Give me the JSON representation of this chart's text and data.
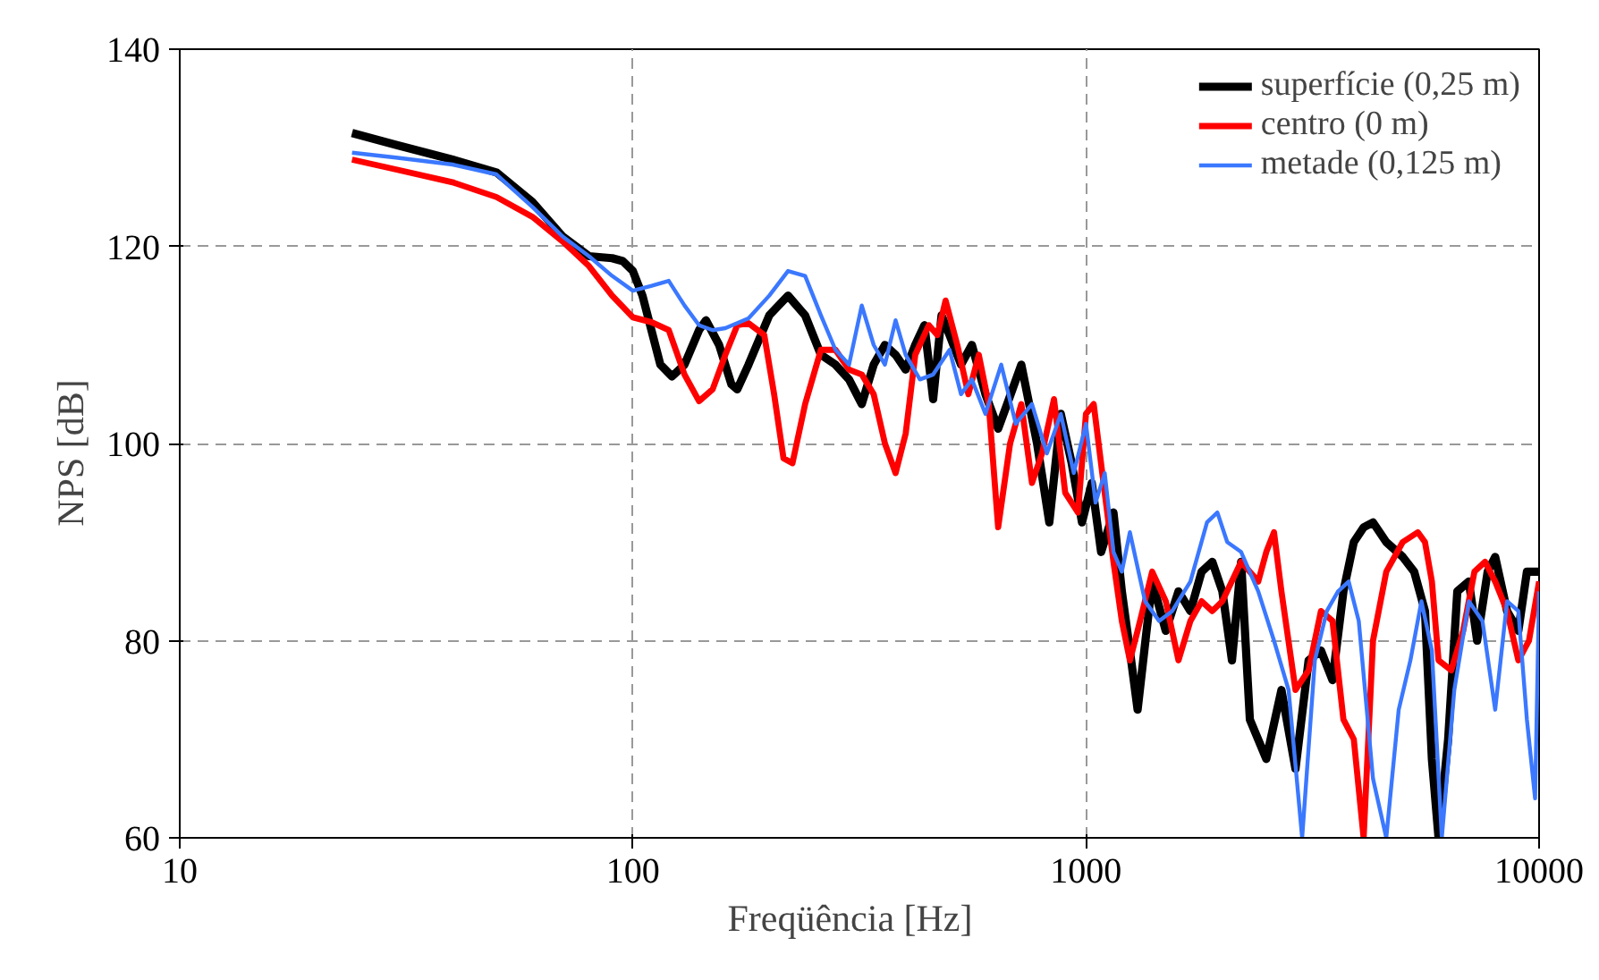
{
  "chart_data": {
    "type": "line",
    "xlabel": "Freqüência   [Hz]",
    "ylabel": "NPS   [dB]",
    "log": "x",
    "grid": true,
    "legend": "top right",
    "line_style": "solid",
    "marker": "none",
    "xlim": [
      10,
      10000
    ],
    "xticks": [
      10,
      100,
      1000,
      10000
    ],
    "ylim": [
      60,
      140
    ],
    "yticks": [
      60,
      80,
      100,
      120,
      140
    ],
    "series": [
      {
        "name": "superfície (0,25 m)",
        "color": "#000000",
        "x": [
          24,
          30,
          40,
          50,
          60,
          70,
          80,
          90,
          95,
          100,
          105,
          115,
          122,
          130,
          140,
          145,
          155,
          165,
          170,
          180,
          200,
          220,
          240,
          260,
          280,
          300,
          320,
          340,
          360,
          380,
          400,
          420,
          440,
          460,
          480,
          500,
          530,
          560,
          600,
          640,
          670,
          720,
          780,
          830,
          880,
          930,
          980,
          1030,
          1080,
          1150,
          1200,
          1250,
          1300,
          1400,
          1500,
          1600,
          1700,
          1800,
          1900,
          2000,
          2100,
          2200,
          2300,
          2500,
          2700,
          2900,
          3100,
          3300,
          3500,
          3700,
          3900,
          4100,
          4300,
          4600,
          5000,
          5300,
          5600,
          5800,
          6000,
          6300,
          6600,
          7000,
          7300,
          7700,
          8000,
          8500,
          9000,
          9400,
          10000
        ],
        "values": [
          131.5,
          130.3,
          128.8,
          127.5,
          124.5,
          121,
          119,
          118.8,
          118.5,
          117.5,
          115,
          108,
          106.8,
          108,
          111.5,
          112.5,
          110,
          106,
          105.5,
          108,
          113,
          115,
          113,
          109,
          108,
          106.5,
          104,
          108,
          110,
          109,
          107.5,
          110,
          112,
          104.5,
          113,
          111,
          108,
          110,
          105,
          101.5,
          104,
          108,
          100,
          92,
          103,
          98,
          92,
          96,
          89,
          93,
          85,
          79,
          73,
          86,
          81,
          85,
          83,
          87,
          88,
          85,
          78,
          88,
          72,
          68,
          75,
          67,
          78,
          79,
          76,
          85,
          90,
          91.5,
          92,
          90,
          88.5,
          87,
          83,
          68,
          60,
          70,
          85,
          86,
          80,
          87,
          88.5,
          83,
          81,
          87,
          87
        ]
      },
      {
        "name": "centro (0 m)",
        "color": "#ff0000",
        "x": [
          24,
          30,
          40,
          50,
          60,
          70,
          80,
          90,
          100,
          110,
          120,
          130,
          140,
          150,
          160,
          170,
          180,
          195,
          205,
          215,
          225,
          240,
          260,
          280,
          300,
          320,
          340,
          360,
          380,
          400,
          420,
          450,
          470,
          490,
          520,
          550,
          580,
          610,
          640,
          680,
          720,
          760,
          800,
          850,
          900,
          960,
          1000,
          1040,
          1100,
          1150,
          1200,
          1250,
          1300,
          1400,
          1500,
          1600,
          1700,
          1800,
          1900,
          2000,
          2200,
          2400,
          2500,
          2600,
          2700,
          2900,
          3100,
          3300,
          3500,
          3700,
          3900,
          4100,
          4300,
          4600,
          5000,
          5400,
          5600,
          5800,
          6000,
          6400,
          6800,
          7200,
          7600,
          8000,
          8500,
          9000,
          9500,
          10000
        ],
        "values": [
          128.8,
          127.8,
          126.5,
          125,
          123,
          120.5,
          118,
          115,
          112.8,
          112.3,
          111.5,
          107,
          104.3,
          105.5,
          109,
          112,
          112.2,
          111,
          105,
          98.5,
          98,
          104,
          109.5,
          109.5,
          107.5,
          107,
          105,
          100,
          97,
          101,
          109,
          112,
          111,
          114.5,
          110,
          105,
          109,
          104,
          91.5,
          100,
          104,
          96,
          99,
          104.5,
          95,
          93,
          103,
          104,
          95,
          88,
          82,
          78,
          81,
          87,
          84,
          78,
          82,
          84,
          83,
          84,
          88,
          86,
          89,
          91,
          85,
          75,
          77,
          83,
          82,
          72,
          70,
          60,
          80,
          87,
          90,
          91,
          90,
          86,
          78,
          77,
          81,
          87,
          88,
          86,
          83,
          78,
          80,
          86
        ]
      },
      {
        "name": "metade (0,125 m)",
        "color": "#3b78ff",
        "x": [
          24,
          30,
          40,
          50,
          60,
          70,
          80,
          90,
          100,
          110,
          120,
          130,
          140,
          150,
          160,
          180,
          200,
          220,
          240,
          260,
          280,
          300,
          320,
          340,
          360,
          380,
          400,
          430,
          460,
          500,
          530,
          560,
          600,
          650,
          700,
          760,
          820,
          880,
          940,
          1000,
          1050,
          1100,
          1150,
          1200,
          1250,
          1350,
          1450,
          1550,
          1700,
          1850,
          1950,
          2050,
          2200,
          2400,
          2600,
          2800,
          3000,
          3200,
          3400,
          3600,
          3800,
          4000,
          4300,
          4600,
          4900,
          5200,
          5500,
          5800,
          6100,
          6500,
          7000,
          7500,
          8000,
          8500,
          9000,
          9400,
          9800,
          10000
        ],
        "values": [
          129.5,
          129,
          128.3,
          127.3,
          124,
          121,
          119,
          117,
          115.5,
          116,
          116.5,
          114,
          112,
          111.5,
          111.7,
          112.7,
          115,
          117.5,
          117,
          113,
          109.5,
          108,
          114,
          110,
          108,
          112.5,
          109,
          106.5,
          107,
          109.5,
          105,
          106.5,
          103,
          108,
          102,
          104,
          99,
          103,
          97,
          102,
          94,
          97,
          89,
          87,
          91,
          84,
          82,
          83,
          86,
          92,
          93,
          90,
          89,
          85,
          80,
          75,
          60,
          78,
          83,
          85,
          86,
          82,
          66,
          60,
          73,
          78,
          84,
          79,
          60,
          75,
          84,
          82,
          73,
          84,
          83,
          72,
          64,
          85
        ]
      }
    ]
  }
}
